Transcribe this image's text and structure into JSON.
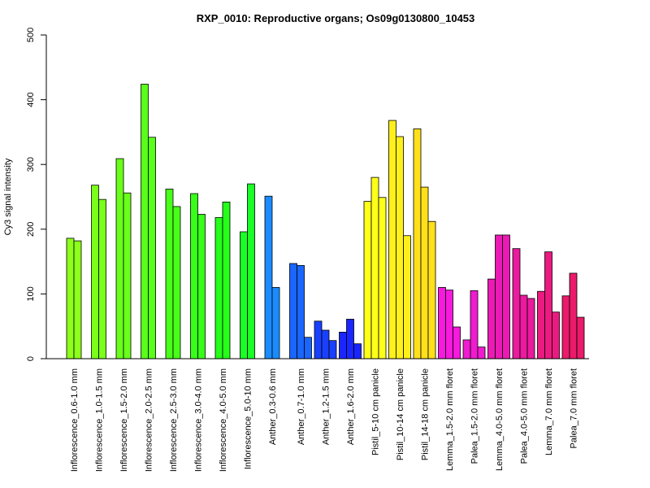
{
  "chart_data": {
    "type": "bar",
    "title": "RXP_0010: Reproductive organs; Os09g0130800_10453",
    "ylabel": "Cy3 signal intensity",
    "xlabel": "",
    "ylim": [
      0,
      500
    ],
    "yticks": [
      0,
      100,
      200,
      300,
      400,
      500
    ],
    "grid": false,
    "groups": [
      {
        "label": "Inflorescence_0.6-1.0 mm",
        "color": "#8cff1a",
        "values": [
          186,
          182
        ]
      },
      {
        "label": "Inflorescence_1.0-1.5 mm",
        "color": "#7bff1a",
        "values": [
          268,
          246
        ]
      },
      {
        "label": "Inflorescence_1.5-2.0 mm",
        "color": "#6aff1a",
        "values": [
          309,
          256
        ]
      },
      {
        "label": "Inflorescence_2.0-2.5 mm",
        "color": "#59ff1a",
        "values": [
          424,
          342
        ]
      },
      {
        "label": "Inflorescence_2.5-3.0 mm",
        "color": "#48ff1a",
        "values": [
          262,
          235
        ]
      },
      {
        "label": "Inflorescence_3.0-4.0 mm",
        "color": "#37ff1a",
        "values": [
          255,
          223
        ]
      },
      {
        "label": "Inflorescence_4.0-5.0 mm",
        "color": "#26ff1a",
        "values": [
          218,
          242
        ]
      },
      {
        "label": "Inflorescence_5.0-10 mm",
        "color": "#1aff26",
        "values": [
          196,
          270
        ]
      },
      {
        "label": "Anther_0.3-0.6 mm",
        "color": "#1a8cff",
        "values": [
          251,
          110
        ]
      },
      {
        "label": "Anther_0.7-1.0 mm",
        "color": "#1a66ff",
        "values": [
          147,
          144,
          33
        ]
      },
      {
        "label": "Anther_1.2-1.5 mm",
        "color": "#1a40ff",
        "values": [
          58,
          44,
          28
        ]
      },
      {
        "label": "Anther_1.6-2.0 mm",
        "color": "#1a26ff",
        "values": [
          41,
          61,
          23
        ]
      },
      {
        "label": "Pistil_5-10 cm panicle",
        "color": "#ffff1a",
        "values": [
          243,
          280,
          249
        ]
      },
      {
        "label": "Pistil_10-14 cm panicle",
        "color": "#fff01a",
        "values": [
          368,
          343,
          190
        ]
      },
      {
        "label": "Pistil_14-18 cm panicle",
        "color": "#ffe01a",
        "values": [
          355,
          265,
          212
        ]
      },
      {
        "label": "Lemma_1.5-2.0 mm floret",
        "color": "#f51adc",
        "values": [
          110,
          106,
          49
        ]
      },
      {
        "label": "Palea_1.5-2.0 mm floret",
        "color": "#f01ad0",
        "values": [
          29,
          105,
          18
        ]
      },
      {
        "label": "Lemma_4.0-5.0 mm floret",
        "color": "#eb1ab4",
        "values": [
          123,
          191,
          191
        ]
      },
      {
        "label": "Palea_4.0-5.0 mm floret",
        "color": "#eb1a9e",
        "values": [
          170,
          98,
          93
        ]
      },
      {
        "label": "Lemma_7.0 mm floret",
        "color": "#eb1a80",
        "values": [
          104,
          165,
          72
        ]
      },
      {
        "label": "Palea_7.0 mm floret",
        "color": "#eb1a6a",
        "values": [
          97,
          132,
          64
        ]
      }
    ]
  }
}
